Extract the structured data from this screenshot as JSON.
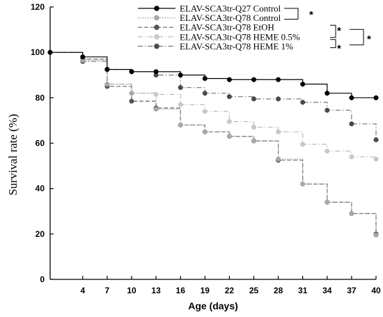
{
  "chart_data": {
    "type": "line",
    "step": true,
    "xlabel": "Age (days)",
    "ylabel": "Survival rate (%)",
    "xlim": [
      0,
      40
    ],
    "ylim": [
      0,
      120
    ],
    "xticks": [
      4,
      7,
      10,
      13,
      16,
      19,
      22,
      25,
      28,
      31,
      34,
      37,
      40
    ],
    "yticks": [
      0,
      20,
      40,
      60,
      80,
      100,
      120
    ],
    "grid": false,
    "legend_position": "top-right",
    "series": [
      {
        "name": "ELAV-SCA3tr-Q27 Control",
        "color": "#000000",
        "dash": "solid",
        "marker_fill": "#000000",
        "x": [
          0,
          3,
          4,
          7,
          10,
          13,
          16,
          19,
          22,
          25,
          28,
          31,
          34,
          37,
          40
        ],
        "y": [
          100,
          100,
          98,
          92.5,
          91.5,
          91.5,
          90,
          88.5,
          88,
          88,
          88,
          86,
          82,
          80,
          80
        ]
      },
      {
        "name": "ELAV-SCA3tr-Q78 Control",
        "color": "#9a9a9a",
        "dash": "dotted",
        "marker_fill": "#a8a8a8",
        "x": [
          0,
          3,
          4,
          7,
          10,
          13,
          16,
          19,
          22,
          25,
          28,
          31,
          34,
          37,
          40
        ],
        "y": [
          100,
          100,
          96.5,
          86,
          82,
          75,
          68,
          65,
          63,
          61,
          53,
          42,
          34,
          29,
          19.5
        ]
      },
      {
        "name": "ELAV-SCA3tr-Q78 EtOH",
        "color": "#666666",
        "dash": "dashed",
        "marker_fill": "#555555",
        "x": [
          0,
          3,
          4,
          7,
          10,
          13,
          16,
          19,
          22,
          25,
          28,
          31,
          34,
          37,
          40
        ],
        "y": [
          100,
          100,
          97,
          85,
          78.5,
          75.5,
          68,
          65,
          63,
          61,
          52.5,
          42,
          34,
          29,
          20
        ]
      },
      {
        "name": "ELAV-SCA3tr-Q78 HEME 0.5%",
        "color": "#b8b8b8",
        "dash": "dashdot",
        "marker_fill": "#c8c8c8",
        "x": [
          0,
          3,
          4,
          7,
          10,
          13,
          16,
          19,
          22,
          25,
          28,
          31,
          34,
          37,
          40
        ],
        "y": [
          100,
          100,
          97,
          86,
          82,
          81.5,
          77,
          74,
          69.5,
          67,
          65,
          59.5,
          56.5,
          54,
          53
        ]
      },
      {
        "name": "ELAV-SCA3tr-Q78 HEME 1%",
        "color": "#777777",
        "dash": "dashdot",
        "marker_fill": "#4a4a4a",
        "x": [
          0,
          3,
          4,
          7,
          10,
          13,
          16,
          19,
          22,
          25,
          28,
          31,
          34,
          37,
          40
        ],
        "y": [
          100,
          100,
          96,
          92.5,
          91.5,
          90,
          84.5,
          82,
          80.5,
          79.5,
          79.5,
          78,
          74.5,
          68.5,
          61.5
        ]
      }
    ],
    "significance": [
      {
        "between": [
          0,
          1
        ],
        "label": "*"
      },
      {
        "between": [
          2,
          3
        ],
        "label": "*"
      },
      {
        "between": [
          3,
          4
        ],
        "label": "*"
      },
      {
        "between_groups": [
          [
            2,
            3
          ],
          [
            3,
            4
          ]
        ],
        "label": "*"
      }
    ]
  }
}
